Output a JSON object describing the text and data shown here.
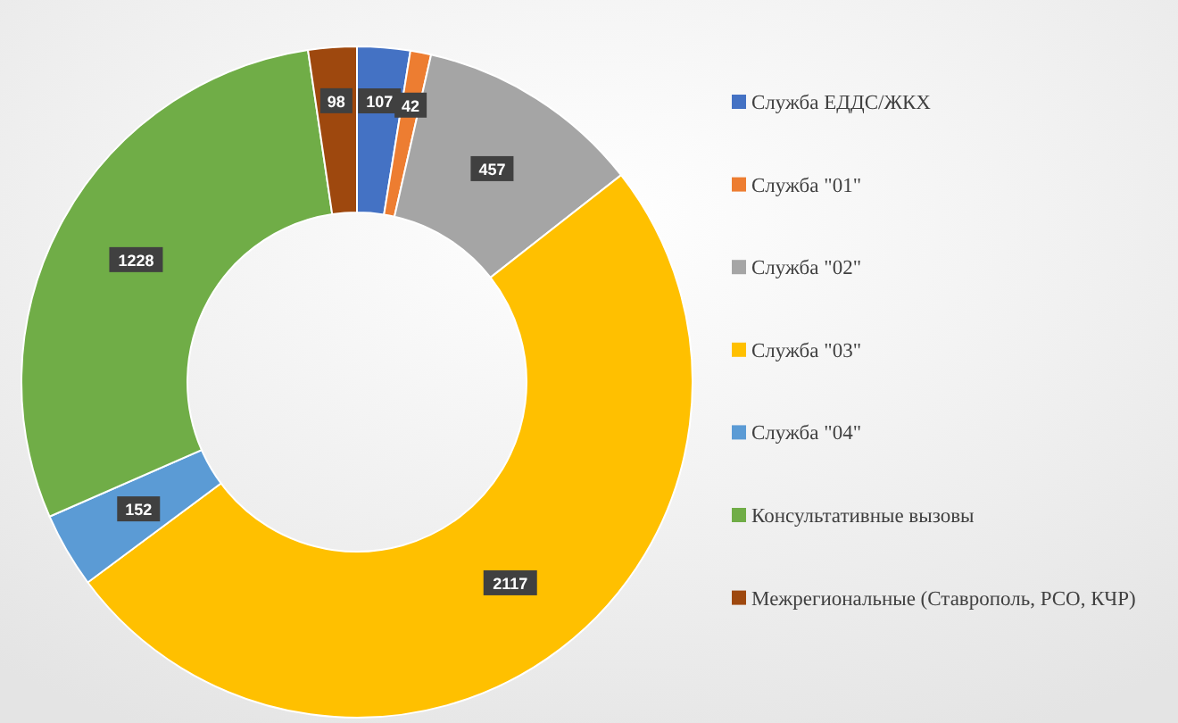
{
  "chart_data": {
    "type": "donut",
    "categories": [
      "Служба ЕДДС/ЖКХ",
      "Служба \"01\"",
      "Служба \"02\"",
      "Служба \"03\"",
      "Служба \"04\"",
      "Консультативные вызовы",
      "Межрегиональные (Ставрополь, РСО, КЧР)"
    ],
    "values": [
      107,
      42,
      457,
      2117,
      152,
      1228,
      98
    ],
    "colors": [
      "#4472c4",
      "#ed7d31",
      "#a5a5a5",
      "#ffc000",
      "#5b9bd5",
      "#70ad47",
      "#9e480e"
    ],
    "data_labels": true,
    "legend": "right"
  }
}
